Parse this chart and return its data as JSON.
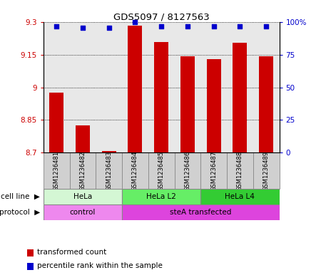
{
  "title": "GDS5097 / 8127563",
  "samples": [
    "GSM1236481",
    "GSM1236482",
    "GSM1236483",
    "GSM1236484",
    "GSM1236485",
    "GSM1236486",
    "GSM1236487",
    "GSM1236488",
    "GSM1236489"
  ],
  "red_values": [
    8.975,
    8.825,
    8.708,
    9.285,
    9.21,
    9.145,
    9.13,
    9.205,
    9.145
  ],
  "blue_values": [
    97,
    96,
    96,
    100,
    97,
    97,
    97,
    97,
    97
  ],
  "ylim_left": [
    8.7,
    9.3
  ],
  "ylim_right": [
    0,
    100
  ],
  "yticks_left": [
    8.7,
    8.85,
    9.0,
    9.15,
    9.3
  ],
  "ytick_labels_left": [
    "8.7",
    "8.85",
    "9",
    "9.15",
    "9.3"
  ],
  "yticks_right": [
    0,
    25,
    50,
    75,
    100
  ],
  "ytick_labels_right": [
    "0",
    "25",
    "50",
    "75",
    "100%"
  ],
  "cell_line_groups": [
    {
      "label": "HeLa",
      "start": 0,
      "end": 3,
      "color": "#d4f7d4"
    },
    {
      "label": "HeLa L2",
      "start": 3,
      "end": 6,
      "color": "#66ee66"
    },
    {
      "label": "HeLa L4",
      "start": 6,
      "end": 9,
      "color": "#33cc33"
    }
  ],
  "protocol_groups": [
    {
      "label": "control",
      "start": 0,
      "end": 3,
      "color": "#ee88ee"
    },
    {
      "label": "steA transfected",
      "start": 3,
      "end": 9,
      "color": "#dd44dd"
    }
  ],
  "legend_items": [
    {
      "color": "#cc0000",
      "label": "transformed count"
    },
    {
      "color": "#0000cc",
      "label": "percentile rank within the sample"
    }
  ],
  "bar_color": "#cc0000",
  "dot_color": "#0000cc",
  "bar_width": 0.55,
  "sample_bg": "#d0d0d0",
  "sample_edge": "#888888"
}
